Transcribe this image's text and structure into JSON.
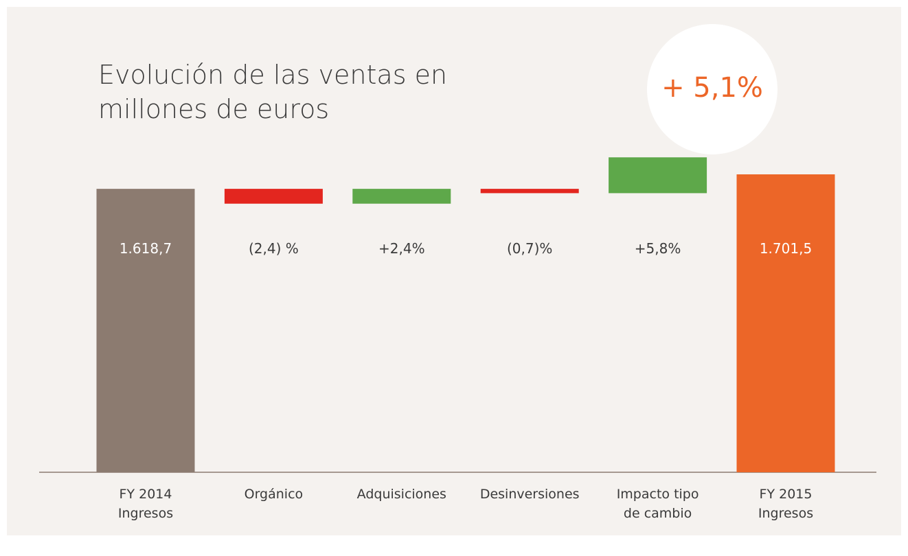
{
  "chart_data": {
    "type": "waterfall",
    "title": "Evolución de las ventas en\nmillones de euros",
    "annotation": "+ 5,1%",
    "categories": [
      "FY 2014\nIngresos",
      "Orgánico",
      "Adquisiciones",
      "Desinversiones",
      "Impacto tipo\nde cambio",
      "FY 2015\nIngresos"
    ],
    "measure": [
      "absolute",
      "relative",
      "relative",
      "relative",
      "relative",
      "absolute"
    ],
    "values": [
      1618.7,
      -2.4,
      2.4,
      -0.7,
      5.8,
      1701.5
    ],
    "value_labels": [
      "1.618,7",
      "(2,4) %",
      "+2,4%",
      "(0,7)%",
      "+5,8%",
      "1.701,5"
    ],
    "colors": [
      "#8c7b70",
      "#e3261f",
      "#5ea84a",
      "#e3261f",
      "#5ea84a",
      "#ec6628"
    ]
  }
}
